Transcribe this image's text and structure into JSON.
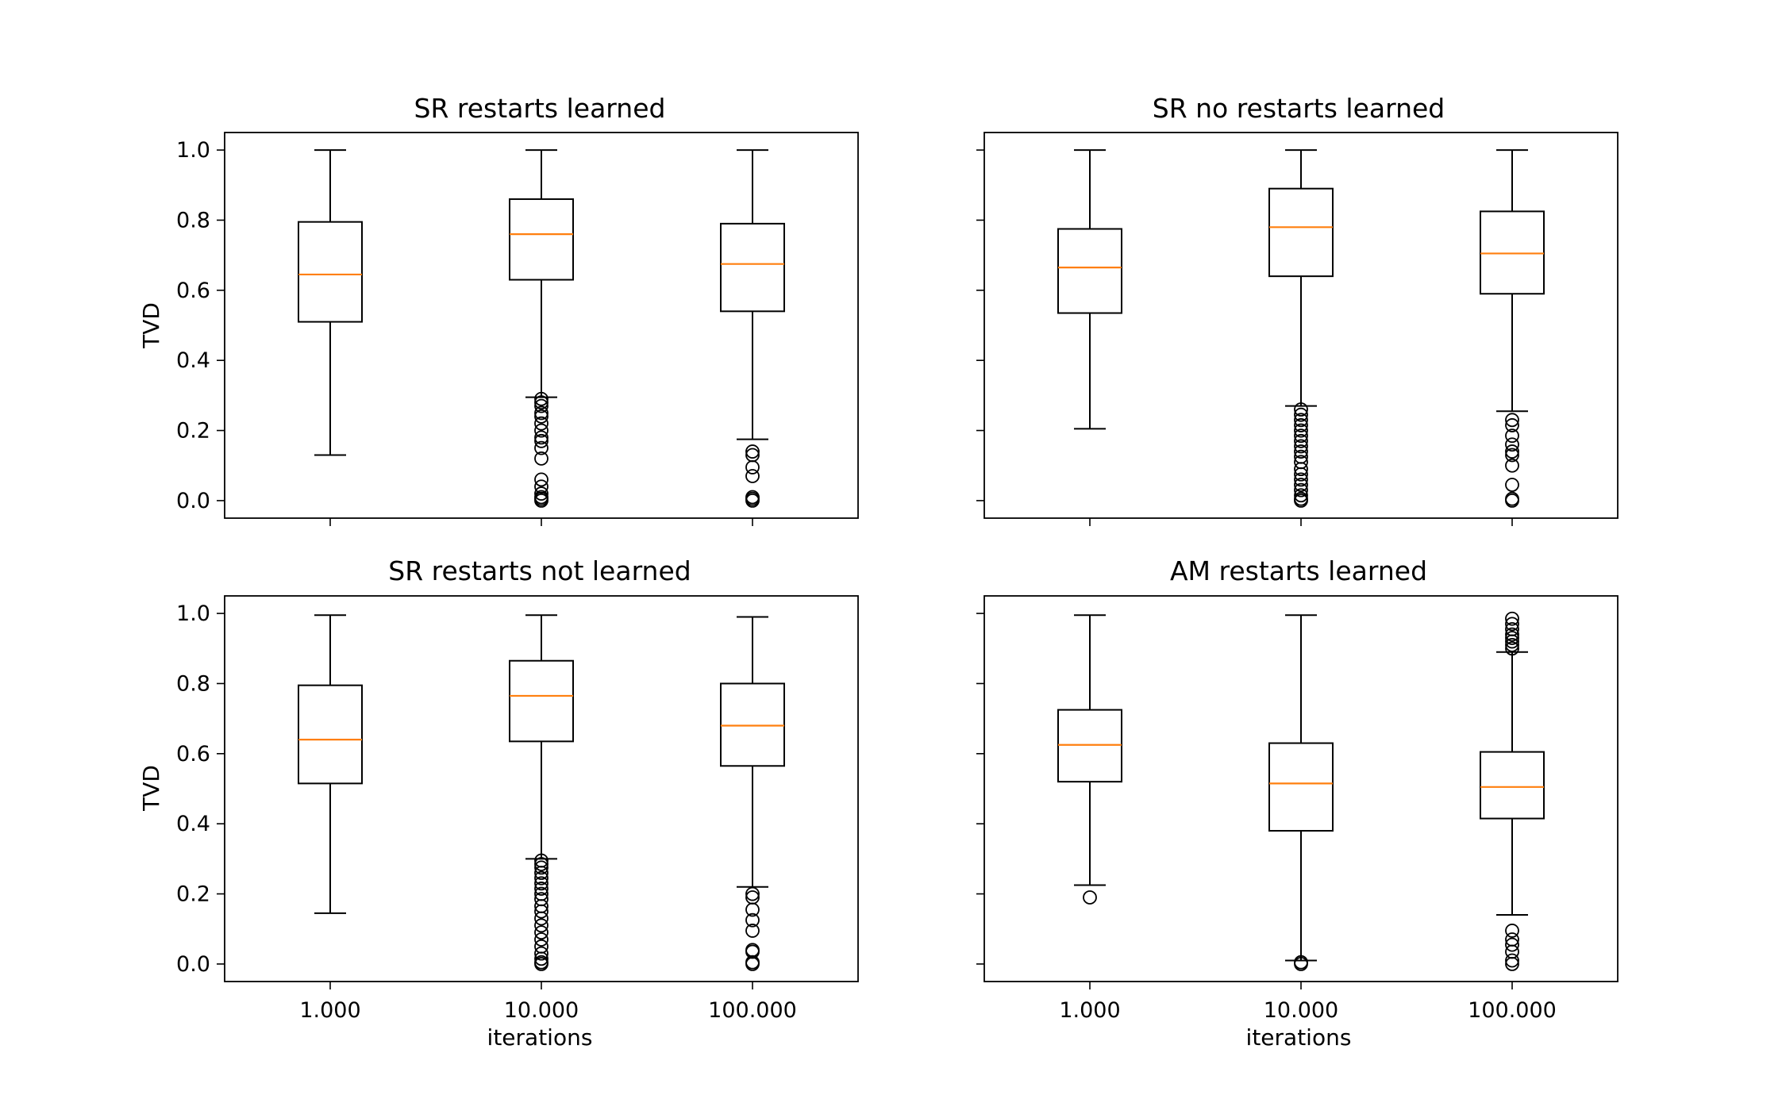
{
  "chart_data": [
    {
      "type": "box",
      "title": "SR restarts learned",
      "xlabel": "",
      "ylabel": "TVD",
      "ylim": [
        -0.05,
        1.05
      ],
      "yticks": [
        "0.0",
        "0.2",
        "0.4",
        "0.6",
        "0.8",
        "1.0"
      ],
      "categories": [
        "1.000",
        "10.000",
        "100.000"
      ],
      "show_xticklabels": false,
      "show_yticklabels": true,
      "boxes": [
        {
          "category": "1.000",
          "whisker_low": 0.13,
          "q1": 0.51,
          "median": 0.645,
          "q3": 0.795,
          "whisker_high": 1.0,
          "outliers": []
        },
        {
          "category": "10.000",
          "whisker_low": 0.295,
          "q1": 0.63,
          "median": 0.76,
          "q3": 0.86,
          "whisker_high": 1.0,
          "outliers": [
            0.29,
            0.28,
            0.27,
            0.25,
            0.24,
            0.22,
            0.2,
            0.18,
            0.17,
            0.15,
            0.12,
            0.06,
            0.04,
            0.02,
            0.01,
            0.005,
            0.0
          ]
        },
        {
          "category": "100.000",
          "whisker_low": 0.175,
          "q1": 0.54,
          "median": 0.675,
          "q3": 0.79,
          "whisker_high": 1.0,
          "outliers": [
            0.14,
            0.13,
            0.095,
            0.07,
            0.01,
            0.005,
            0.0
          ]
        }
      ]
    },
    {
      "type": "box",
      "title": "SR no restarts learned",
      "xlabel": "",
      "ylabel": "",
      "ylim": [
        -0.05,
        1.05
      ],
      "yticks": [
        "0.0",
        "0.2",
        "0.4",
        "0.6",
        "0.8",
        "1.0"
      ],
      "categories": [
        "1.000",
        "10.000",
        "100.000"
      ],
      "show_xticklabels": false,
      "show_yticklabels": false,
      "boxes": [
        {
          "category": "1.000",
          "whisker_low": 0.205,
          "q1": 0.535,
          "median": 0.665,
          "q3": 0.775,
          "whisker_high": 1.0,
          "outliers": []
        },
        {
          "category": "10.000",
          "whisker_low": 0.27,
          "q1": 0.64,
          "median": 0.78,
          "q3": 0.89,
          "whisker_high": 1.0,
          "outliers": [
            0.26,
            0.245,
            0.23,
            0.215,
            0.2,
            0.185,
            0.17,
            0.155,
            0.14,
            0.125,
            0.11,
            0.09,
            0.075,
            0.06,
            0.045,
            0.03,
            0.015,
            0.005,
            0.0
          ]
        },
        {
          "category": "100.000",
          "whisker_low": 0.255,
          "q1": 0.59,
          "median": 0.705,
          "q3": 0.825,
          "whisker_high": 1.0,
          "outliers": [
            0.23,
            0.215,
            0.185,
            0.16,
            0.14,
            0.13,
            0.1,
            0.045,
            0.005,
            0.0
          ]
        }
      ]
    },
    {
      "type": "box",
      "title": "SR restarts not learned",
      "xlabel": "iterations",
      "ylabel": "TVD",
      "ylim": [
        -0.05,
        1.05
      ],
      "yticks": [
        "0.0",
        "0.2",
        "0.4",
        "0.6",
        "0.8",
        "1.0"
      ],
      "categories": [
        "1.000",
        "10.000",
        "100.000"
      ],
      "show_xticklabels": true,
      "show_yticklabels": true,
      "boxes": [
        {
          "category": "1.000",
          "whisker_low": 0.145,
          "q1": 0.515,
          "median": 0.64,
          "q3": 0.795,
          "whisker_high": 0.995,
          "outliers": []
        },
        {
          "category": "10.000",
          "whisker_low": 0.3,
          "q1": 0.635,
          "median": 0.765,
          "q3": 0.865,
          "whisker_high": 0.995,
          "outliers": [
            0.295,
            0.285,
            0.275,
            0.26,
            0.245,
            0.23,
            0.215,
            0.2,
            0.185,
            0.165,
            0.15,
            0.13,
            0.11,
            0.09,
            0.07,
            0.05,
            0.03,
            0.015,
            0.005,
            0.0
          ]
        },
        {
          "category": "100.000",
          "whisker_low": 0.22,
          "q1": 0.565,
          "median": 0.68,
          "q3": 0.8,
          "whisker_high": 0.99,
          "outliers": [
            0.2,
            0.19,
            0.155,
            0.125,
            0.095,
            0.04,
            0.035,
            0.005,
            0.0
          ]
        }
      ]
    },
    {
      "type": "box",
      "title": "AM restarts learned",
      "xlabel": "iterations",
      "ylabel": "",
      "ylim": [
        -0.05,
        1.05
      ],
      "yticks": [
        "0.0",
        "0.2",
        "0.4",
        "0.6",
        "0.8",
        "1.0"
      ],
      "categories": [
        "1.000",
        "10.000",
        "100.000"
      ],
      "show_xticklabels": true,
      "show_yticklabels": false,
      "boxes": [
        {
          "category": "1.000",
          "whisker_low": 0.225,
          "q1": 0.52,
          "median": 0.625,
          "q3": 0.725,
          "whisker_high": 0.995,
          "outliers": [
            0.19
          ]
        },
        {
          "category": "10.000",
          "whisker_low": 0.01,
          "q1": 0.38,
          "median": 0.515,
          "q3": 0.63,
          "whisker_high": 0.995,
          "outliers": [
            0.005,
            0.0
          ]
        },
        {
          "category": "100.000",
          "whisker_low": 0.14,
          "q1": 0.415,
          "median": 0.505,
          "q3": 0.605,
          "whisker_high": 0.89,
          "outliers": [
            0.985,
            0.97,
            0.955,
            0.94,
            0.93,
            0.92,
            0.91,
            0.9,
            0.095,
            0.07,
            0.055,
            0.035,
            0.01,
            0.0
          ]
        }
      ]
    }
  ]
}
